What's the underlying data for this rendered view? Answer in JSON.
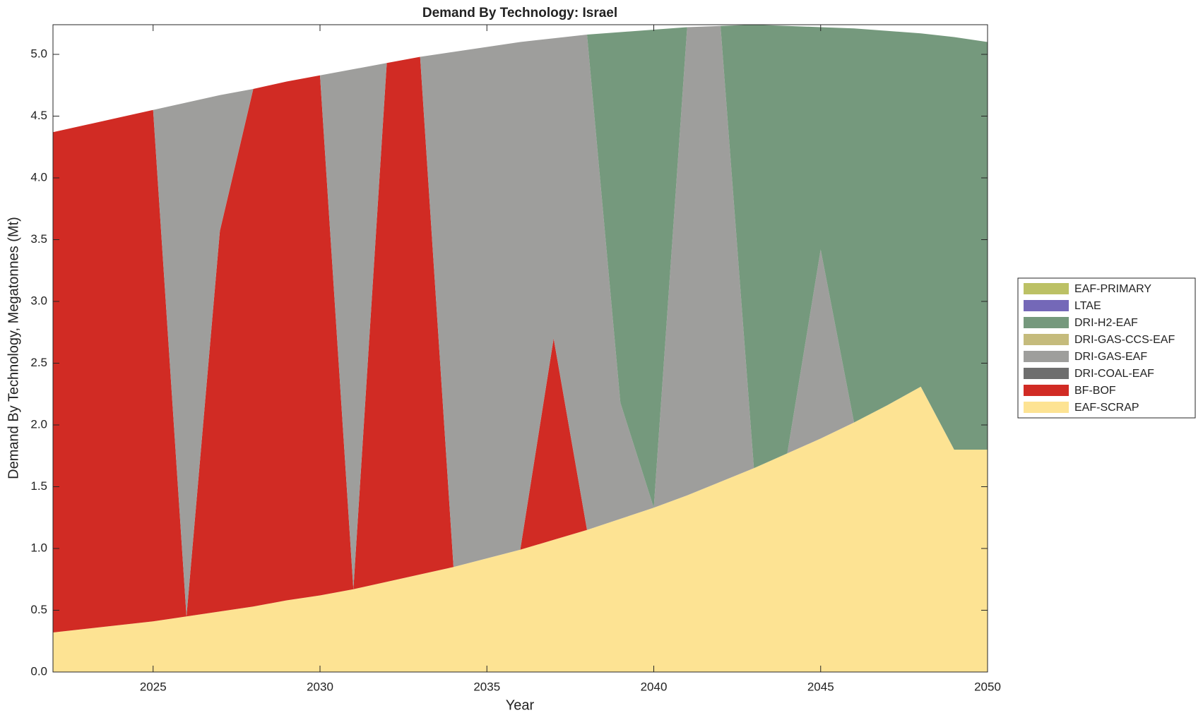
{
  "chart_data": {
    "type": "stacked_area",
    "title": "Demand By Technology: Israel",
    "xlabel": "Year",
    "ylabel": "Demand By Technology, Megatonnes (Mt)",
    "x": [
      2022,
      2023,
      2024,
      2025,
      2026,
      2027,
      2028,
      2029,
      2030,
      2031,
      2032,
      2033,
      2034,
      2035,
      2036,
      2037,
      2038,
      2039,
      2040,
      2041,
      2042,
      2043,
      2044,
      2045,
      2046,
      2047,
      2048,
      2049,
      2050
    ],
    "xlim": [
      2022,
      2050
    ],
    "xticks": [
      2025,
      2030,
      2035,
      2040,
      2045,
      2050
    ],
    "ylim": [
      0,
      5.24
    ],
    "yticks": [
      {
        "value": 0,
        "label": "0.0"
      },
      0.5,
      {
        "value": 1,
        "label": "1.0"
      },
      1.5,
      {
        "value": 2,
        "label": "2.0"
      },
      2.5,
      {
        "value": 3,
        "label": "3.0"
      },
      3.5,
      {
        "value": 4,
        "label": "4.0"
      },
      4.5,
      {
        "value": 5,
        "label": "5.0"
      }
    ],
    "series": [
      {
        "name": "EAF-SCRAP",
        "color": "#fde393",
        "values": [
          0.32,
          0.35,
          0.38,
          0.41,
          0.45,
          0.49,
          0.53,
          0.58,
          0.62,
          0.67,
          0.73,
          0.79,
          0.85,
          0.92,
          0.99,
          1.07,
          1.15,
          1.24,
          1.33,
          1.43,
          1.54,
          1.65,
          1.77,
          1.89,
          2.02,
          2.16,
          2.31,
          1.8,
          1.8
        ]
      },
      {
        "name": "BF-BOF",
        "color": "#d12b24",
        "values": [
          4.05,
          4.08,
          4.11,
          4.14,
          0,
          3.08,
          4.19,
          4.2,
          4.21,
          0,
          4.2,
          4.19,
          0,
          0,
          0,
          1.63,
          0,
          0,
          0,
          0,
          0,
          0,
          0,
          0,
          0,
          0,
          0,
          0,
          0
        ]
      },
      {
        "name": "DRI-COAL-EAF",
        "color": "#6e6e6e",
        "values": [
          0,
          0,
          0,
          0,
          0,
          0,
          0,
          0,
          0,
          0,
          0,
          0,
          0,
          0,
          0,
          0,
          0,
          0,
          0,
          0,
          0,
          0,
          0,
          0,
          0,
          0,
          0,
          0,
          0
        ]
      },
      {
        "name": "DRI-GAS-EAF",
        "color": "#9e9e9c",
        "values": [
          0,
          0,
          0,
          0,
          4.16,
          1.1,
          0,
          0,
          0,
          4.21,
          0,
          0,
          4.17,
          4.14,
          4.11,
          2.43,
          4.01,
          0.94,
          0,
          3.79,
          3.69,
          0,
          0,
          1.53,
          0,
          0,
          0,
          0,
          0
        ]
      },
      {
        "name": "DRI-GAS-CCS-EAF",
        "color": "#c5bb7c",
        "values": [
          0,
          0,
          0,
          0,
          0,
          0,
          0,
          0,
          0,
          0,
          0,
          0,
          0,
          0,
          0,
          0,
          0,
          0,
          0,
          0,
          0,
          0,
          0,
          0,
          0,
          0,
          0,
          0,
          0
        ]
      },
      {
        "name": "DRI-H2-EAF",
        "color": "#75997d",
        "values": [
          0,
          0,
          0,
          0,
          0,
          0,
          0,
          0,
          0,
          0,
          0,
          0,
          0,
          0,
          0,
          0,
          0,
          3.0,
          3.87,
          0,
          0,
          3.59,
          3.46,
          1.8,
          3.19,
          3.03,
          2.86,
          3.34,
          3.3
        ]
      },
      {
        "name": "LTAE",
        "color": "#7468b8",
        "values": [
          0,
          0,
          0,
          0,
          0,
          0,
          0,
          0,
          0,
          0,
          0,
          0,
          0,
          0,
          0,
          0,
          0,
          0,
          0,
          0,
          0,
          0,
          0,
          0,
          0,
          0,
          0,
          0,
          0
        ]
      },
      {
        "name": "EAF-PRIMARY",
        "color": "#bcc165",
        "values": [
          0,
          0,
          0,
          0,
          0,
          0,
          0,
          0,
          0,
          0,
          0,
          0,
          0,
          0,
          0,
          0,
          0,
          0,
          0,
          0,
          0,
          0,
          0,
          0,
          0,
          0,
          0,
          0,
          0
        ]
      }
    ],
    "legend": "right"
  }
}
